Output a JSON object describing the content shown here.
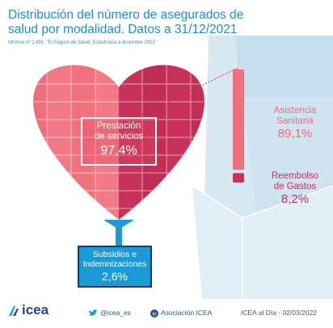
{
  "title": "Distribución del número de asegurados de salud por modalidad. Datos a 31/12/2021",
  "source": "Informe nº 1.691: \"El Seguro de Salud. Estadística a diciembre 2021\"",
  "chart_data": {
    "type": "stacked-bar",
    "title": "Distribución del número de asegurados de salud por modalidad. Datos a 31/12/2021",
    "categories": [
      "Prestación de servicios",
      "Subsidios e Indemnizaciones"
    ],
    "values": [
      97.4,
      2.6
    ],
    "sub_breakdown": {
      "of": "Prestación de servicios",
      "categories": [
        "Asistencia Sanitaria",
        "Reembolso de Gastos"
      ],
      "values": [
        89.1,
        8.2
      ]
    },
    "value_labels": {
      "prestacion": "97,4%",
      "subsidios": "2,6%",
      "asistencia": "89,1%",
      "reembolso": "8,2%"
    },
    "colors": {
      "asistencia": "#ef6f7c",
      "reembolso": "#cc2f57",
      "subsidios": "#1a9ad6",
      "heart_light": "#f27a86",
      "heart_dark": "#c8325a"
    }
  },
  "labels": {
    "prestacion_l1": "Prestación",
    "prestacion_l2": "de servicios",
    "subsidios_l1": "Subsidios e",
    "subsidios_l2": "Indemnizaciones",
    "asistencia_l1": "Asistencia",
    "asistencia_l2": "Sanitaria",
    "reembolso_l1": "Reembolso",
    "reembolso_l2": "de Gastos"
  },
  "footer": {
    "logo": "icea",
    "twitter": "@icea_es",
    "linkedin": "Asociación ICEA",
    "date": "ICEA al Día - 02/03/2022"
  }
}
